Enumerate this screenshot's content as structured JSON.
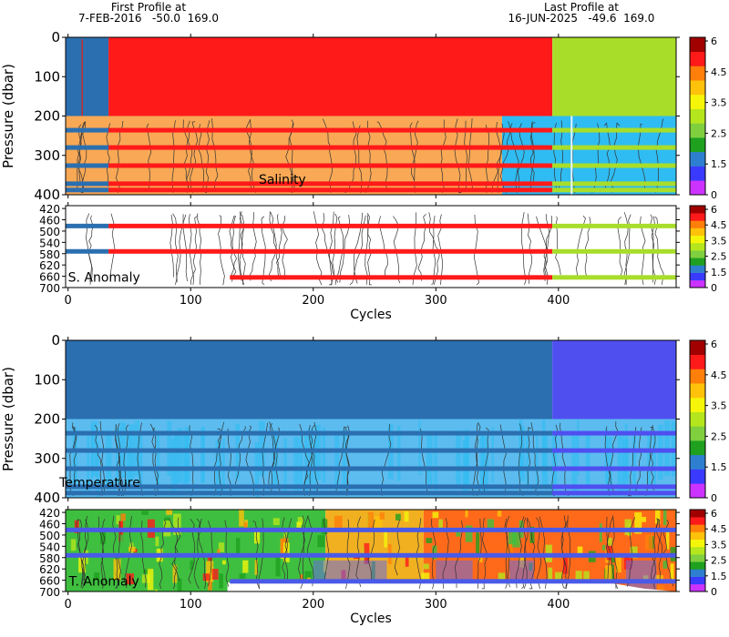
{
  "header": {
    "first_profile_label": "First Profile at",
    "first_profile_value": "7-FEB-2016   -50.0  169.0",
    "last_profile_label": "Last Profile at",
    "last_profile_value": "16-JUN-2025   -49.6  169.0"
  },
  "chart_data": [
    {
      "id": "salinity",
      "type": "heatmap",
      "label": "Salinity",
      "ylabel": "Pressure (dbar)",
      "xlabel": "",
      "xlim": [
        -2,
        496
      ],
      "ylim": [
        400,
        0
      ],
      "yticks": [
        0,
        100,
        200,
        300,
        400
      ],
      "xticks": [
        0,
        100,
        200,
        300,
        400
      ],
      "colorbar": {
        "min": 0,
        "max": 6,
        "tick_labels": [
          "6",
          "4.5",
          "3.5",
          "2.5",
          "1.5",
          "0"
        ]
      },
      "regions": [
        {
          "x0": -2,
          "x1": 33,
          "y0": 0,
          "y1": 200,
          "color": "#2b6fb0"
        },
        {
          "x0": 33,
          "x1": 395,
          "y0": 0,
          "y1": 200,
          "color": "#ff1a1a"
        },
        {
          "x0": 395,
          "x1": 496,
          "y0": 0,
          "y1": 200,
          "color": "#a8dd2a"
        },
        {
          "x0": -2,
          "x1": 354,
          "y0": 200,
          "y1": 400,
          "color": "#f9a855"
        },
        {
          "x0": 354,
          "x1": 496,
          "y0": 200,
          "y1": 400,
          "color": "#2fbcf2"
        }
      ],
      "stripes": [
        {
          "y": 236,
          "segments": [
            [
              -2,
              33,
              "#2b6fb0"
            ],
            [
              33,
              395,
              "#ff1a1a"
            ],
            [
              395,
              496,
              "#a8dd2a"
            ]
          ]
        },
        {
          "y": 280,
          "segments": [
            [
              -2,
              33,
              "#2b6fb0"
            ],
            [
              33,
              395,
              "#ff1a1a"
            ],
            [
              395,
              496,
              "#a8dd2a"
            ]
          ]
        },
        {
          "y": 326,
          "segments": [
            [
              -2,
              33,
              "#2b6fb0"
            ],
            [
              33,
              395,
              "#ff1a1a"
            ],
            [
              395,
              496,
              "#a8dd2a"
            ]
          ]
        },
        {
          "y": 372,
          "segments": [
            [
              -2,
              33,
              "#2b6fb0"
            ],
            [
              33,
              395,
              "#ff1a1a"
            ],
            [
              395,
              496,
              "#a8dd2a"
            ]
          ]
        },
        {
          "y": 388,
          "segments": [
            [
              -2,
              33,
              "#2b6fb0"
            ],
            [
              33,
              395,
              "#ff1a1a"
            ],
            [
              395,
              496,
              "#a8dd2a"
            ]
          ]
        }
      ]
    },
    {
      "id": "salinity_anomaly",
      "type": "heatmap",
      "label": "S. Anomaly",
      "ylabel": "",
      "xlabel": "Cycles",
      "xlim": [
        -2,
        496
      ],
      "ylim": [
        700,
        410
      ],
      "yticks": [
        420,
        460,
        500,
        540,
        580,
        620,
        660,
        700
      ],
      "xticks": [
        0,
        100,
        200,
        300,
        400
      ],
      "colorbar": {
        "min": 0,
        "max": 6,
        "tick_labels": [
          "6",
          "4.5",
          "3.5",
          "2.5",
          "1.5",
          "0"
        ]
      },
      "stripes": [
        {
          "y": 482,
          "segments": [
            [
              -2,
              33,
              "#2b6fb0"
            ],
            [
              33,
              395,
              "#ff1a1a"
            ],
            [
              395,
              496,
              "#a8dd2a"
            ]
          ]
        },
        {
          "y": 572,
          "segments": [
            [
              -2,
              33,
              "#2b6fb0"
            ],
            [
              33,
              395,
              "#ff1a1a"
            ],
            [
              395,
              496,
              "#a8dd2a"
            ]
          ]
        },
        {
          "y": 664,
          "segments": [
            [
              132,
              395,
              "#ff1a1a"
            ],
            [
              395,
              496,
              "#a8dd2a"
            ]
          ]
        }
      ]
    },
    {
      "id": "temperature",
      "type": "heatmap",
      "label": "Temperature",
      "ylabel": "Pressure (dbar)",
      "xlabel": "",
      "xlim": [
        -2,
        496
      ],
      "ylim": [
        400,
        0
      ],
      "yticks": [
        0,
        100,
        200,
        300,
        400
      ],
      "xticks": [
        0,
        100,
        200,
        300,
        400
      ],
      "colorbar": {
        "min": 0,
        "max": 6,
        "tick_labels": [
          "6",
          "4.5",
          "3.5",
          "2.5",
          "1.5",
          "0"
        ]
      },
      "regions": [
        {
          "x0": -2,
          "x1": 395,
          "y0": 0,
          "y1": 200,
          "color": "#2b6fb0"
        },
        {
          "x0": 395,
          "x1": 496,
          "y0": 0,
          "y1": 200,
          "color": "#4f4ff0"
        },
        {
          "x0": -2,
          "x1": 496,
          "y0": 200,
          "y1": 400,
          "color": "#5cbcef"
        }
      ],
      "stripes": [
        {
          "y": 236,
          "segments": [
            [
              -2,
              395,
              "#2b6fb0"
            ],
            [
              395,
              496,
              "#4f4ff0"
            ]
          ]
        },
        {
          "y": 280,
          "segments": [
            [
              -2,
              395,
              "#2b6fb0"
            ],
            [
              395,
              496,
              "#4f4ff0"
            ]
          ]
        },
        {
          "y": 326,
          "segments": [
            [
              -2,
              395,
              "#2b6fb0"
            ],
            [
              395,
              496,
              "#4f4ff0"
            ]
          ]
        },
        {
          "y": 372,
          "segments": [
            [
              -2,
              395,
              "#2b6fb0"
            ],
            [
              395,
              496,
              "#4f4ff0"
            ]
          ]
        },
        {
          "y": 388,
          "segments": [
            [
              -2,
              395,
              "#2b6fb0"
            ],
            [
              395,
              496,
              "#4f4ff0"
            ]
          ]
        }
      ]
    },
    {
      "id": "temperature_anomaly",
      "type": "heatmap",
      "label": "T. Anomaly",
      "ylabel": "",
      "xlabel": "Cycles",
      "xlim": [
        -2,
        496
      ],
      "ylim": [
        700,
        410
      ],
      "yticks": [
        420,
        460,
        500,
        540,
        580,
        620,
        660,
        700
      ],
      "xticks": [
        0,
        100,
        200,
        300,
        400
      ],
      "colorbar": {
        "min": 0,
        "max": 6,
        "tick_labels": [
          "6",
          "4.5",
          "3.5",
          "2.5",
          "1.5",
          "0"
        ]
      },
      "background_bands": [
        {
          "x0": -2,
          "x1": 210,
          "color": "#3fbf3f"
        },
        {
          "x0": 210,
          "x1": 290,
          "color": "#f0b020"
        },
        {
          "x0": 290,
          "x1": 496,
          "color": "#ff6a1a"
        }
      ],
      "stripes": [
        {
          "y": 482,
          "segments": [
            [
              -2,
              496,
              "#4a5ae8"
            ]
          ]
        },
        {
          "y": 572,
          "segments": [
            [
              -2,
              496,
              "#4a5ae8"
            ]
          ]
        },
        {
          "y": 664,
          "segments": [
            [
              132,
              496,
              "#4a5ae8"
            ]
          ]
        }
      ]
    }
  ],
  "colorbar_colors": [
    "#cc33ff",
    "#3a3aff",
    "#2f7fd0",
    "#1fa01f",
    "#7fcf3f",
    "#b5e61d",
    "#f5f50a",
    "#ffc20a",
    "#ff7f0a",
    "#ff1a1a",
    "#a00000"
  ]
}
